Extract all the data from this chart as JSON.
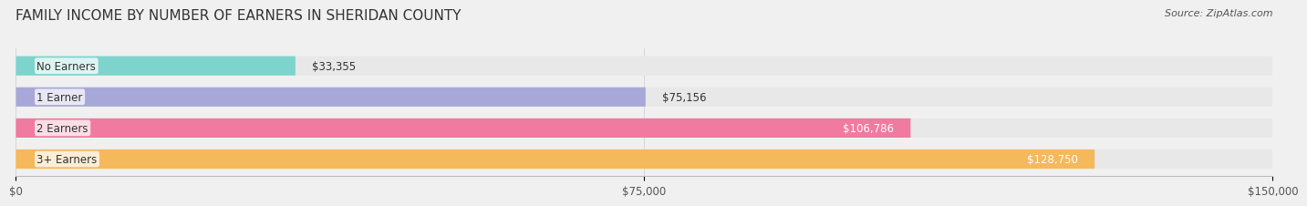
{
  "title": "FAMILY INCOME BY NUMBER OF EARNERS IN SHERIDAN COUNTY",
  "source": "Source: ZipAtlas.com",
  "categories": [
    "No Earners",
    "1 Earner",
    "2 Earners",
    "3+ Earners"
  ],
  "values": [
    33355,
    75156,
    106786,
    128750
  ],
  "bar_colors": [
    "#7dd4cc",
    "#a8a8d8",
    "#f07aa0",
    "#f5b85a"
  ],
  "label_colors": [
    "#333333",
    "#333333",
    "#ffffff",
    "#ffffff"
  ],
  "xmax": 150000,
  "xticks": [
    0,
    75000,
    150000
  ],
  "xtick_labels": [
    "$0",
    "$75,000",
    "$150,000"
  ],
  "background_color": "#f0f0f0",
  "bar_bg_color": "#e8e8e8",
  "figwidth": 14.06,
  "figheight": 2.33
}
